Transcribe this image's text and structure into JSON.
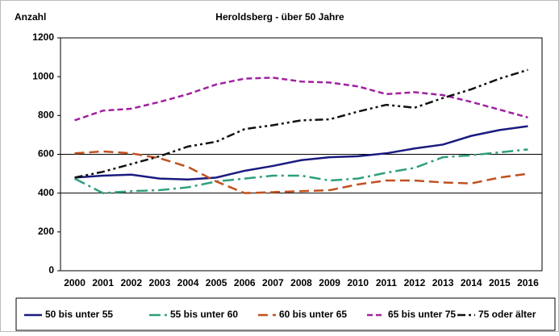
{
  "chart_data": {
    "type": "line",
    "title": "Heroldsberg - über 50 Jahre",
    "y_label": "Anzahl",
    "categories": [
      "2000",
      "2001",
      "2002",
      "2003",
      "2004",
      "2005",
      "2006",
      "2007",
      "2008",
      "2009",
      "2010",
      "2011",
      "2012",
      "2013",
      "2014",
      "2015",
      "2016"
    ],
    "ylim": [
      0,
      1200
    ],
    "yticks": [
      0,
      200,
      400,
      600,
      800,
      1000,
      1200
    ],
    "grid_lines": [
      400,
      600
    ],
    "legend": "bottom",
    "series": [
      {
        "name": "50 bis unter 55",
        "color": "#1a1a80",
        "dash": "",
        "values": [
          480,
          490,
          495,
          475,
          470,
          480,
          515,
          540,
          570,
          585,
          590,
          605,
          630,
          650,
          695,
          725,
          745
        ]
      },
      {
        "name": "55 bis unter 60",
        "color": "#2e9e7e",
        "dash": "14 5 3 5",
        "values": [
          475,
          400,
          410,
          415,
          430,
          460,
          475,
          490,
          490,
          465,
          475,
          505,
          530,
          585,
          595,
          610,
          625
        ]
      },
      {
        "name": "60 bis unter 65",
        "color": "#c0501e",
        "dash": "12 6",
        "values": [
          605,
          615,
          605,
          580,
          535,
          460,
          400,
          405,
          410,
          415,
          445,
          465,
          465,
          455,
          450,
          480,
          500
        ]
      },
      {
        "name": "65 bis unter 75",
        "color": "#a020a0",
        "dash": "7 4",
        "values": [
          775,
          825,
          835,
          870,
          910,
          960,
          990,
          995,
          975,
          970,
          950,
          910,
          920,
          905,
          870,
          830,
          790
        ]
      },
      {
        "name": "75 oder älter",
        "color": "#111111",
        "dash": "10 4 3 4 3 4",
        "values": [
          480,
          510,
          550,
          590,
          640,
          665,
          730,
          750,
          775,
          780,
          820,
          855,
          840,
          890,
          935,
          990,
          1035
        ]
      }
    ]
  }
}
